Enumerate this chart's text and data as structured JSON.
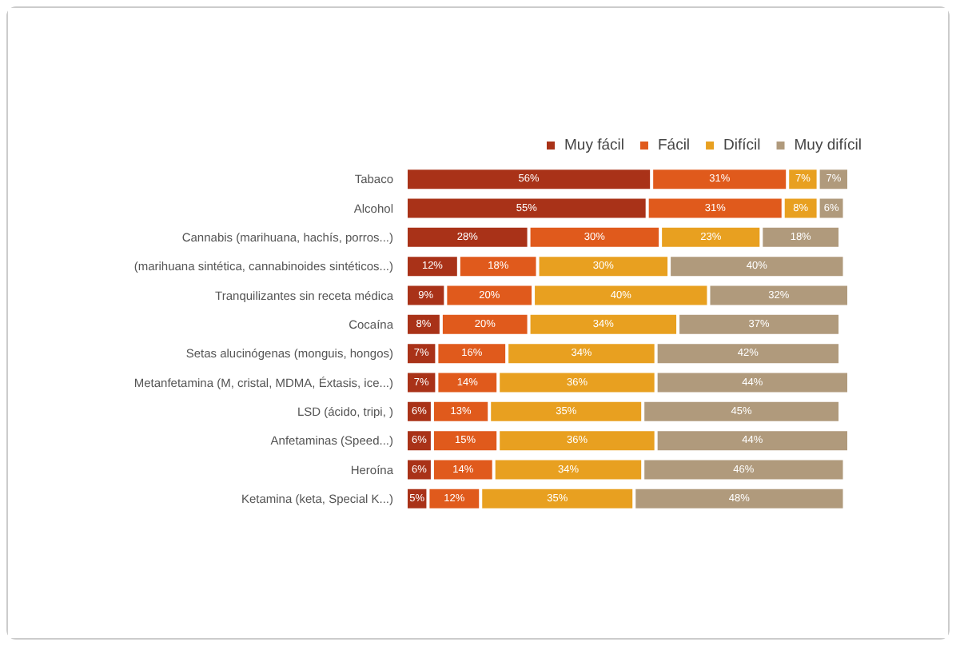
{
  "chart_data": {
    "type": "bar",
    "orientation": "horizontal",
    "stacked": true,
    "legend": "top",
    "tick_labels": "y",
    "categories": [
      "Tabaco",
      "Alcohol",
      "Cannabis (marihuana, hachís, porros...)",
      "(marihuana sintética, cannabinoides sintéticos...)",
      "Tranquilizantes sin receta médica",
      "Cocaína",
      "Setas alucinógenas (monguis, hongos)",
      "Metanfetamina (M, cristal, MDMA, Éxtasis, ice...)",
      "LSD (ácido, tripi, )",
      "Anfetaminas (Speed...)",
      "Heroína",
      "Ketamina (keta, Special K...)"
    ],
    "series": [
      {
        "name": "Muy fácil",
        "color": "#a93218",
        "values": [
          56,
          55,
          28,
          12,
          9,
          8,
          7,
          7,
          6,
          6,
          6,
          5
        ],
        "value_labels": [
          "56%",
          "55%",
          "28%",
          "12%",
          "9%",
          "8%",
          "7%",
          "7%",
          "6%",
          "6%",
          "6%",
          "5%"
        ]
      },
      {
        "name": "Fácil",
        "color": "#e05a1c",
        "values": [
          31,
          31,
          30,
          18,
          20,
          20,
          16,
          14,
          13,
          15,
          14,
          12
        ],
        "value_labels": [
          "31%",
          "31%",
          "30%",
          "18%",
          "20%",
          "20%",
          "16%",
          "14%",
          "13%",
          "15%",
          "14%",
          "12%"
        ]
      },
      {
        "name": "Difícil",
        "color": "#e8a020",
        "values": [
          7,
          8,
          23,
          30,
          40,
          34,
          34,
          36,
          35,
          36,
          34,
          35
        ],
        "value_labels": [
          "7%",
          "8%",
          "23%",
          "30%",
          "40%",
          "34%",
          "34%",
          "36%",
          "35%",
          "36%",
          "34%",
          "35%"
        ]
      },
      {
        "name": "Muy difícil",
        "color": "#b09a7c",
        "values": [
          7,
          6,
          18,
          40,
          32,
          37,
          42,
          44,
          45,
          44,
          46,
          48
        ],
        "value_labels": [
          "7%",
          "6%",
          "18%",
          "40%",
          "32%",
          "37%",
          "42%",
          "44%",
          "45%",
          "44%",
          "46%",
          "48%"
        ]
      }
    ]
  }
}
